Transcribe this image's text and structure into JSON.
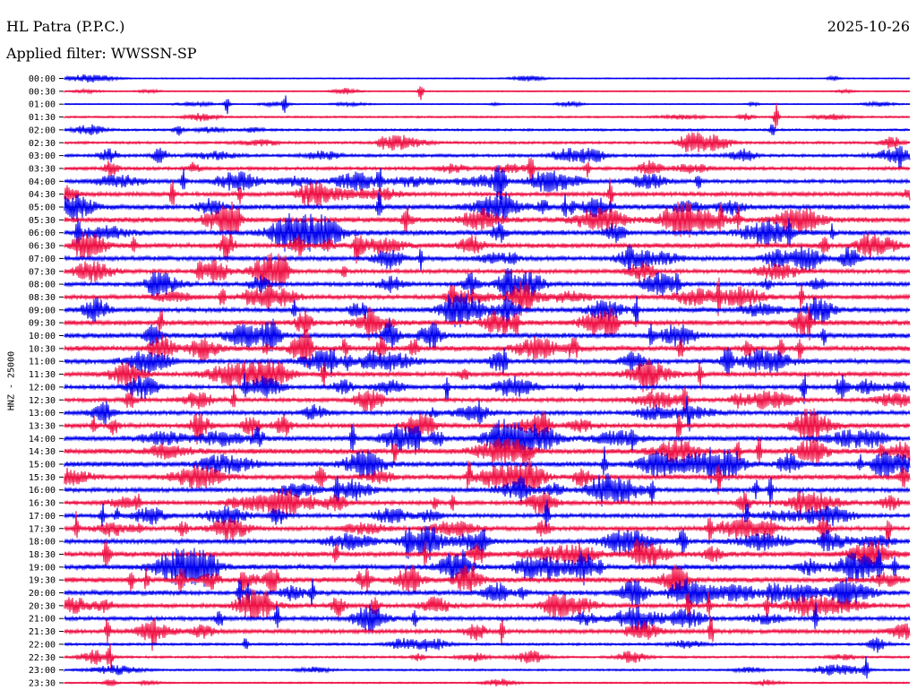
{
  "header": {
    "station": "HL Patra (P.P.C.)",
    "date": "2025-10-26",
    "filter": "Applied filter: WWSSN-SP"
  },
  "chart_data": {
    "type": "line",
    "title": "HL Patra (P.P.C.)",
    "date": "2025-10-26",
    "filter": "Applied filter: WWSSN-SP",
    "ylabel": "HNZ - 25000",
    "colors": {
      "even_rows": "#0000ee",
      "odd_rows": "#ee1144"
    },
    "rows": [
      "00:00",
      "00:30",
      "01:00",
      "01:30",
      "02:00",
      "02:30",
      "03:00",
      "03:30",
      "04:00",
      "04:30",
      "05:00",
      "05:30",
      "06:00",
      "06:30",
      "07:00",
      "07:30",
      "08:00",
      "08:30",
      "09:00",
      "09:30",
      "10:00",
      "10:30",
      "11:00",
      "11:30",
      "12:00",
      "12:30",
      "13:00",
      "13:30",
      "14:00",
      "14:30",
      "15:00",
      "15:30",
      "16:00",
      "16:30",
      "17:00",
      "17:30",
      "18:00",
      "18:30",
      "19:00",
      "19:30",
      "20:00",
      "20:30",
      "21:00",
      "21:30",
      "22:00",
      "22:30",
      "23:00",
      "23:30"
    ],
    "row_minutes": 30
  }
}
